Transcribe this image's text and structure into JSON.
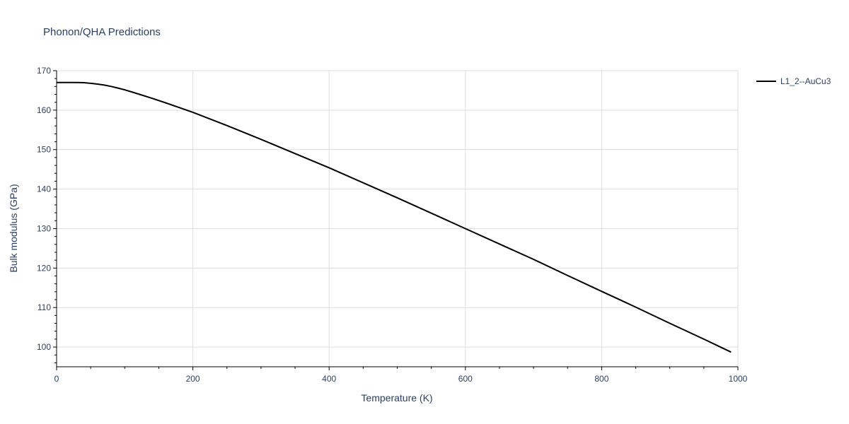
{
  "chart_data": {
    "type": "line",
    "title": "Phonon/QHA Predictions",
    "xlabel": "Temperature (K)",
    "ylabel": "Bulk modulus (GPa)",
    "xlim": [
      0,
      1000
    ],
    "ylim": [
      95,
      170
    ],
    "xticks": [
      0,
      200,
      400,
      600,
      800,
      1000
    ],
    "yticks": [
      100,
      110,
      120,
      130,
      140,
      150,
      160,
      170
    ],
    "grid": true,
    "legend_position": "top-right",
    "series": [
      {
        "name": "L1_2--AuCu3",
        "color": "#000000",
        "x": [
          0,
          10,
          20,
          30,
          40,
          50,
          60,
          70,
          80,
          90,
          100,
          120,
          140,
          160,
          180,
          200,
          250,
          300,
          350,
          400,
          450,
          500,
          550,
          600,
          650,
          700,
          750,
          800,
          850,
          900,
          950,
          990
        ],
        "y": [
          167.0,
          167.0,
          167.0,
          167.0,
          166.95,
          166.8,
          166.6,
          166.35,
          166.0,
          165.6,
          165.15,
          164.1,
          163.0,
          161.85,
          160.65,
          159.45,
          156.1,
          152.6,
          149.0,
          145.4,
          141.6,
          137.8,
          133.9,
          130.0,
          126.1,
          122.2,
          118.1,
          114.1,
          110.1,
          106.0,
          102.0,
          98.7
        ]
      }
    ]
  }
}
